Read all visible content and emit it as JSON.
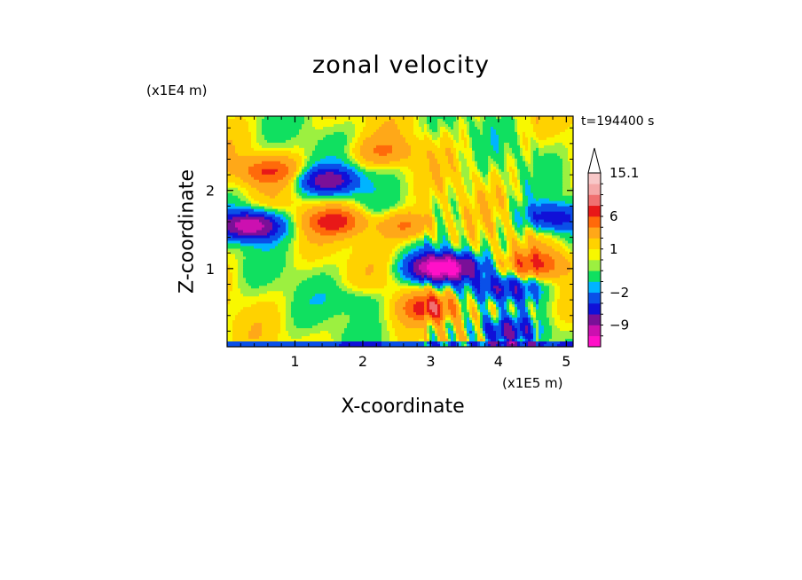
{
  "chart_data": {
    "type": "heatmap",
    "title": "zonal velocity",
    "xlabel": "X-coordinate",
    "ylabel": "Z-coordinate",
    "x_unit_label": "(x1E5 m)",
    "y_unit_label": "(x1E4 m)",
    "time_label": "t=194400 s",
    "xlim": [
      0,
      5.1
    ],
    "ylim": [
      0,
      2.95
    ],
    "x_ticks": [
      "1",
      "2",
      "3",
      "4",
      "5"
    ],
    "y_ticks": [
      "1",
      "2"
    ],
    "colorbar": {
      "levels": [
        -15,
        -12,
        -9,
        -6,
        -4,
        -2,
        -1,
        0,
        0.5,
        1,
        2,
        4,
        6,
        8,
        10,
        12,
        15.1
      ],
      "colors": [
        "#ff10c8",
        "#cc10b0",
        "#7a1098",
        "#1010d8",
        "#0a50e8",
        "#00b4ff",
        "#10e060",
        "#9cf040",
        "#f8f800",
        "#ffd200",
        "#ffa818",
        "#ff6a0a",
        "#e81818",
        "#f07070",
        "#f5a8a8",
        "#f8c8c8"
      ],
      "tick_labels": [
        "15.1",
        "6",
        "1",
        "-2",
        "-9"
      ],
      "extend": "max"
    },
    "anomalies": [
      {
        "x": 0.35,
        "z": 1.55,
        "u": -12
      },
      {
        "x": 1.5,
        "z": 2.12,
        "u": -8
      },
      {
        "x": 3.1,
        "z": 1.0,
        "u": -11
      },
      {
        "x": 3.3,
        "z": 1.02,
        "u": -6
      },
      {
        "x": 4.15,
        "z": 0.75,
        "u": -6
      },
      {
        "x": 4.8,
        "z": 1.65,
        "u": -6
      },
      {
        "x": 4.1,
        "z": 0.2,
        "u": -6
      },
      {
        "x": 0.6,
        "z": 2.25,
        "u": 5
      },
      {
        "x": 1.6,
        "z": 1.6,
        "u": 6
      },
      {
        "x": 2.65,
        "z": 1.55,
        "u": 4
      },
      {
        "x": 3.0,
        "z": 0.5,
        "u": 6
      },
      {
        "x": 4.55,
        "z": 1.05,
        "u": 5
      },
      {
        "x": 2.3,
        "z": 2.5,
        "u": 3
      },
      {
        "x": 1.9,
        "z": 0.6,
        "u": -1.5
      }
    ]
  }
}
